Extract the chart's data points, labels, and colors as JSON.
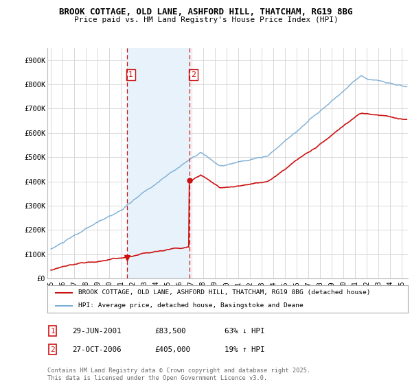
{
  "title1": "BROOK COTTAGE, OLD LANE, ASHFORD HILL, THATCHAM, RG19 8BG",
  "title2": "Price paid vs. HM Land Registry's House Price Index (HPI)",
  "bg_color": "#ffffff",
  "plot_bg_color": "#ffffff",
  "grid_color": "#d8d8d8",
  "hpi_line_color": "#7aadd4",
  "price_line_color": "#cc1111",
  "shade_color": "#e8f2fa",
  "purchase1_date": 2001.49,
  "purchase1_price": 83500,
  "purchase1_label": "1",
  "purchase2_date": 2006.82,
  "purchase2_price": 405000,
  "purchase2_label": "2",
  "ylim": [
    0,
    950000
  ],
  "xlim_start": 1994.7,
  "xlim_end": 2025.5,
  "yticks": [
    0,
    100000,
    200000,
    300000,
    400000,
    500000,
    600000,
    700000,
    800000,
    900000
  ],
  "ytick_labels": [
    "£0",
    "£100K",
    "£200K",
    "£300K",
    "£400K",
    "£500K",
    "£600K",
    "£700K",
    "£800K",
    "£900K"
  ],
  "xtick_years": [
    1995,
    1996,
    1997,
    1998,
    1999,
    2000,
    2001,
    2002,
    2003,
    2004,
    2005,
    2006,
    2007,
    2008,
    2009,
    2010,
    2011,
    2012,
    2013,
    2014,
    2015,
    2016,
    2017,
    2018,
    2019,
    2020,
    2021,
    2022,
    2023,
    2024,
    2025
  ],
  "legend_line1": "BROOK COTTAGE, OLD LANE, ASHFORD HILL, THATCHAM, RG19 8BG (detached house)",
  "legend_line2": "HPI: Average price, detached house, Basingstoke and Deane",
  "annotation1_date": "29-JUN-2001",
  "annotation1_price": "£83,500",
  "annotation1_hpi": "63% ↓ HPI",
  "annotation2_date": "27-OCT-2006",
  "annotation2_price": "£405,000",
  "annotation2_hpi": "19% ↑ HPI",
  "footer": "Contains HM Land Registry data © Crown copyright and database right 2025.\nThis data is licensed under the Open Government Licence v3.0."
}
